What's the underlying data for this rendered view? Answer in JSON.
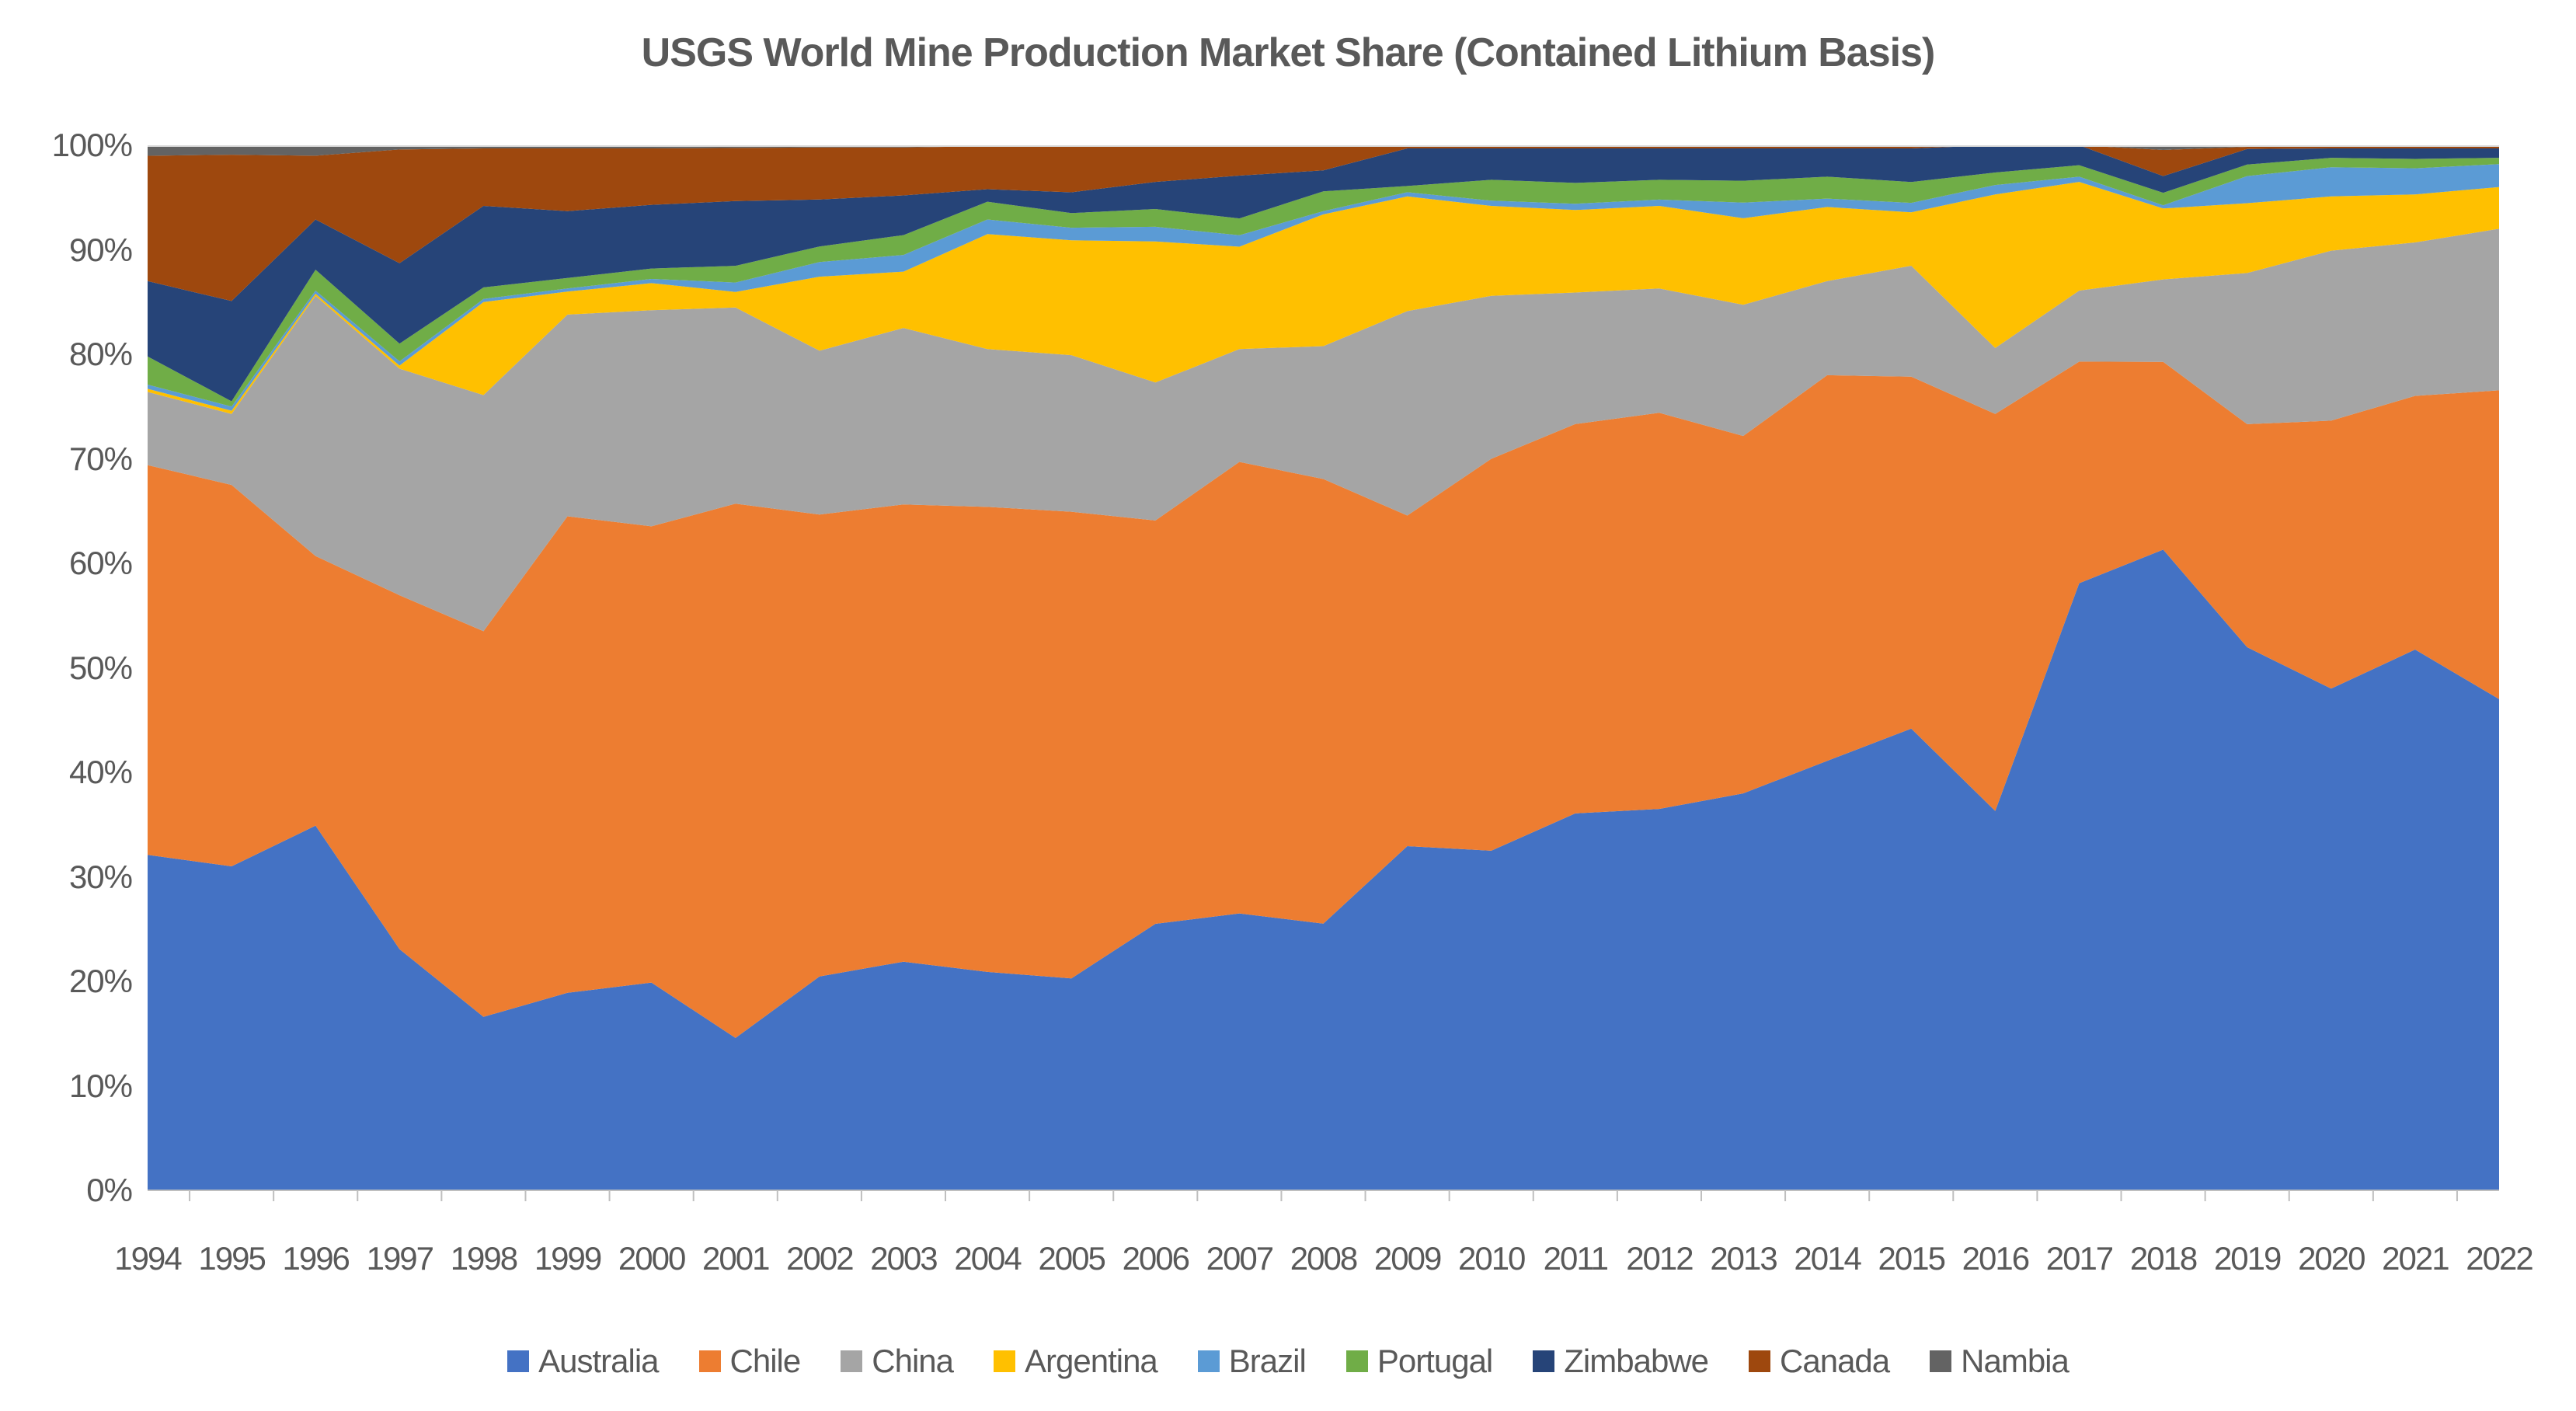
{
  "chart_data": {
    "type": "area",
    "stacked": true,
    "percent": true,
    "title": "USGS World Mine Production Market Share (Contained Lithium Basis)",
    "xlabel": "",
    "ylabel": "",
    "ylim": [
      0,
      100
    ],
    "y_ticks": [
      "0%",
      "10%",
      "20%",
      "30%",
      "40%",
      "50%",
      "60%",
      "70%",
      "80%",
      "90%",
      "100%"
    ],
    "grid": false,
    "legend_position": "bottom",
    "axis_text_color": "#595959",
    "axis_line_color": "#BFBFBF",
    "plot_top_border_color": "#D9D9D9",
    "years": [
      1994,
      1995,
      1996,
      1997,
      1998,
      1999,
      2000,
      2001,
      2002,
      2003,
      2004,
      2005,
      2006,
      2007,
      2008,
      2009,
      2010,
      2011,
      2012,
      2013,
      2014,
      2015,
      2016,
      2017,
      2018,
      2019,
      2020,
      2021,
      2022
    ],
    "series": [
      {
        "name": "Australia",
        "color": "#4472C4",
        "values": [
          32.1,
          31.0,
          34.9,
          23.1,
          16.6,
          18.9,
          19.9,
          14.6,
          20.5,
          21.9,
          20.9,
          20.3,
          25.5,
          26.5,
          25.5,
          33.0,
          32.5,
          36.1,
          36.5,
          38.1,
          41.1,
          44.1,
          36.3,
          58.1,
          61.4,
          52.1,
          48.1,
          51.8,
          47.1
        ]
      },
      {
        "name": "Chile",
        "color": "#ED7D31",
        "values": [
          37.3,
          36.5,
          25.8,
          33.9,
          36.9,
          45.6,
          43.7,
          51.2,
          44.3,
          43.8,
          44.5,
          44.7,
          38.6,
          43.2,
          42.5,
          31.7,
          37.5,
          37.3,
          37.9,
          34.3,
          36.9,
          33.6,
          38.0,
          21.2,
          18.0,
          21.4,
          25.7,
          24.3,
          29.6
        ]
      },
      {
        "name": "China",
        "color": "#A5A5A5",
        "values": [
          7.0,
          6.8,
          24.9,
          21.7,
          22.6,
          19.3,
          20.7,
          18.8,
          15.7,
          16.9,
          15.1,
          15.0,
          13.2,
          10.8,
          12.7,
          19.6,
          15.6,
          12.6,
          11.9,
          12.6,
          9.0,
          10.6,
          6.3,
          6.8,
          7.9,
          14.5,
          16.3,
          14.7,
          15.5
        ]
      },
      {
        "name": "Argentina",
        "color": "#FFC000",
        "values": [
          0.3,
          0.3,
          0.2,
          0.3,
          8.9,
          2.2,
          2.6,
          1.5,
          7.1,
          5.4,
          11.0,
          11.0,
          13.5,
          9.8,
          12.6,
          11.0,
          8.6,
          7.9,
          7.9,
          8.3,
          7.1,
          5.1,
          14.7,
          10.4,
          6.8,
          6.7,
          5.2,
          4.6,
          4.0
        ]
      },
      {
        "name": "Brazil",
        "color": "#5B9BD5",
        "values": [
          0.4,
          0.4,
          0.3,
          0.4,
          0.3,
          0.3,
          0.4,
          0.9,
          1.4,
          1.6,
          1.4,
          1.2,
          1.4,
          1.1,
          0.3,
          0.4,
          0.5,
          0.6,
          0.6,
          1.5,
          0.8,
          0.9,
          0.9,
          0.5,
          0.3,
          2.6,
          2.8,
          2.5,
          2.2
        ]
      },
      {
        "name": "Portugal",
        "color": "#70AD47",
        "values": [
          2.7,
          0.5,
          2.0,
          1.7,
          1.1,
          1.0,
          1.0,
          1.6,
          1.5,
          1.9,
          1.7,
          1.4,
          1.7,
          1.6,
          1.9,
          0.6,
          2.0,
          2.0,
          1.9,
          2.1,
          2.1,
          2.0,
          1.2,
          1.1,
          1.2,
          1.1,
          0.9,
          0.9,
          0.6
        ]
      },
      {
        "name": "Zimbabwe",
        "color": "#264478",
        "values": [
          7.2,
          9.6,
          4.8,
          7.7,
          7.8,
          6.4,
          6.1,
          6.2,
          4.5,
          3.8,
          1.2,
          2.0,
          2.6,
          4.1,
          2.0,
          3.6,
          3.0,
          3.3,
          3.0,
          3.1,
          2.7,
          3.2,
          2.6,
          1.9,
          1.6,
          1.5,
          0.9,
          1.0,
          0.9
        ]
      },
      {
        "name": "Canada",
        "color": "#9E480E",
        "values": [
          12.0,
          14.0,
          6.1,
          10.9,
          5.5,
          6.0,
          5.4,
          5.1,
          5.0,
          4.6,
          4.1,
          4.4,
          3.5,
          2.9,
          2.4,
          0.3,
          0.3,
          0.3,
          0.3,
          0.3,
          0.3,
          0.3,
          0.0,
          0.0,
          2.5,
          0.2,
          0.3,
          0.3,
          0.3
        ]
      },
      {
        "name": "Nambia",
        "color": "#636363",
        "values": [
          1.0,
          0.9,
          1.0,
          0.4,
          0.3,
          0.3,
          0.3,
          0.25,
          0.2,
          0.2,
          0.1,
          0.1,
          0.0,
          0.0,
          0.0,
          0.0,
          0.0,
          0.0,
          0.0,
          0.0,
          0.0,
          0.0,
          0.0,
          0.0,
          0.45,
          0.15,
          0.0,
          0.0,
          0.0
        ]
      }
    ]
  }
}
